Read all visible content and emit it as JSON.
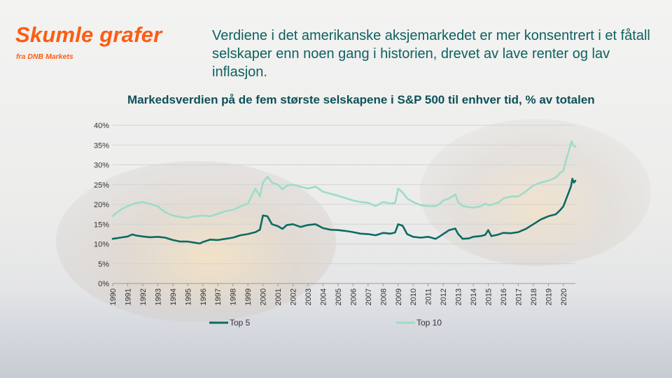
{
  "brand": {
    "title": "Skumle grafer",
    "subtitle": "fra DNB Markets",
    "color": "#ff5b12"
  },
  "headline": "Verdiene i det amerikanske aksjemarkedet er mer konsentrert i et fåtall selskaper enn noen gang i historien, drevet av lave renter og lav inflasjon.",
  "chart_data": {
    "type": "line",
    "title": "Markedsverdien på de fem største selskapene i S&P 500 til enhver tid, % av totalen",
    "xlabel": "",
    "ylabel": "",
    "xlim": [
      1990,
      2020.8
    ],
    "ylim": [
      0,
      40
    ],
    "y_ticks": [
      0,
      5,
      10,
      15,
      20,
      25,
      30,
      35,
      40
    ],
    "y_tick_labels": [
      "0%",
      "5%",
      "10%",
      "15%",
      "20%",
      "25%",
      "30%",
      "35%",
      "40%"
    ],
    "x_tick_labels": [
      "1990",
      "1991",
      "1992",
      "1993",
      "1994",
      "1995",
      "1996",
      "1997",
      "1998",
      "1999",
      "2000",
      "2001",
      "2002",
      "2003",
      "2004",
      "2005",
      "2006",
      "2007",
      "2008",
      "2009",
      "2010",
      "2011",
      "2012",
      "2013",
      "2014",
      "2015",
      "2016",
      "2017",
      "2018",
      "2019",
      "2020"
    ],
    "grid": "horizontal",
    "legend_position": "bottom",
    "series": [
      {
        "name": "Top 5",
        "color": "#0c6b63",
        "points": [
          [
            1990.0,
            11.3
          ],
          [
            1990.5,
            11.6
          ],
          [
            1991.0,
            11.9
          ],
          [
            1991.3,
            12.4
          ],
          [
            1991.6,
            12.1
          ],
          [
            1992.0,
            11.9
          ],
          [
            1992.5,
            11.7
          ],
          [
            1993.0,
            11.8
          ],
          [
            1993.5,
            11.6
          ],
          [
            1994.0,
            11.0
          ],
          [
            1994.5,
            10.6
          ],
          [
            1995.0,
            10.6
          ],
          [
            1995.5,
            10.3
          ],
          [
            1995.8,
            10.1
          ],
          [
            1996.0,
            10.5
          ],
          [
            1996.5,
            11.1
          ],
          [
            1997.0,
            11.0
          ],
          [
            1997.5,
            11.3
          ],
          [
            1998.0,
            11.6
          ],
          [
            1998.5,
            12.2
          ],
          [
            1999.0,
            12.5
          ],
          [
            1999.5,
            13.0
          ],
          [
            1999.8,
            13.6
          ],
          [
            2000.0,
            17.2
          ],
          [
            2000.3,
            17.0
          ],
          [
            2000.6,
            15.0
          ],
          [
            2001.0,
            14.5
          ],
          [
            2001.3,
            13.8
          ],
          [
            2001.6,
            14.8
          ],
          [
            2002.0,
            15.0
          ],
          [
            2002.5,
            14.3
          ],
          [
            2003.0,
            14.8
          ],
          [
            2003.5,
            15.0
          ],
          [
            2004.0,
            14.0
          ],
          [
            2004.5,
            13.6
          ],
          [
            2005.0,
            13.5
          ],
          [
            2005.5,
            13.3
          ],
          [
            2006.0,
            13.0
          ],
          [
            2006.5,
            12.6
          ],
          [
            2007.0,
            12.5
          ],
          [
            2007.5,
            12.2
          ],
          [
            2008.0,
            12.8
          ],
          [
            2008.5,
            12.6
          ],
          [
            2008.8,
            12.9
          ],
          [
            2009.0,
            15.0
          ],
          [
            2009.3,
            14.6
          ],
          [
            2009.6,
            12.5
          ],
          [
            2010.0,
            11.8
          ],
          [
            2010.5,
            11.6
          ],
          [
            2011.0,
            11.8
          ],
          [
            2011.5,
            11.3
          ],
          [
            2011.8,
            12.0
          ],
          [
            2012.0,
            12.5
          ],
          [
            2012.4,
            13.5
          ],
          [
            2012.8,
            13.9
          ],
          [
            2013.0,
            12.5
          ],
          [
            2013.3,
            11.3
          ],
          [
            2013.7,
            11.4
          ],
          [
            2014.0,
            11.8
          ],
          [
            2014.5,
            12.0
          ],
          [
            2014.8,
            12.3
          ],
          [
            2015.0,
            13.5
          ],
          [
            2015.2,
            12.0
          ],
          [
            2015.6,
            12.3
          ],
          [
            2016.0,
            12.8
          ],
          [
            2016.5,
            12.7
          ],
          [
            2017.0,
            13.0
          ],
          [
            2017.5,
            13.8
          ],
          [
            2018.0,
            15.0
          ],
          [
            2018.5,
            16.2
          ],
          [
            2019.0,
            17.0
          ],
          [
            2019.5,
            17.5
          ],
          [
            2019.8,
            18.6
          ],
          [
            2020.0,
            19.5
          ],
          [
            2020.3,
            22.5
          ],
          [
            2020.5,
            24.5
          ],
          [
            2020.6,
            26.5
          ],
          [
            2020.7,
            25.5
          ],
          [
            2020.8,
            26.0
          ]
        ]
      },
      {
        "name": "Top 10",
        "color": "#9ddcc8",
        "points": [
          [
            1990.0,
            17.0
          ],
          [
            1990.3,
            18.0
          ],
          [
            1990.6,
            18.8
          ],
          [
            1991.0,
            19.6
          ],
          [
            1991.5,
            20.3
          ],
          [
            1992.0,
            20.6
          ],
          [
            1992.5,
            20.1
          ],
          [
            1993.0,
            19.5
          ],
          [
            1993.5,
            18.0
          ],
          [
            1994.0,
            17.2
          ],
          [
            1994.5,
            16.8
          ],
          [
            1995.0,
            16.6
          ],
          [
            1995.5,
            17.0
          ],
          [
            1996.0,
            17.2
          ],
          [
            1996.5,
            17.0
          ],
          [
            1997.0,
            17.6
          ],
          [
            1997.5,
            18.3
          ],
          [
            1998.0,
            18.6
          ],
          [
            1998.5,
            19.5
          ],
          [
            1999.0,
            20.2
          ],
          [
            1999.3,
            22.5
          ],
          [
            1999.5,
            24.0
          ],
          [
            1999.8,
            22.0
          ],
          [
            2000.0,
            25.5
          ],
          [
            2000.3,
            27.0
          ],
          [
            2000.6,
            25.5
          ],
          [
            2001.0,
            25.0
          ],
          [
            2001.3,
            23.8
          ],
          [
            2001.6,
            24.8
          ],
          [
            2002.0,
            25.0
          ],
          [
            2002.5,
            24.5
          ],
          [
            2003.0,
            24.0
          ],
          [
            2003.5,
            24.5
          ],
          [
            2004.0,
            23.2
          ],
          [
            2004.5,
            22.7
          ],
          [
            2005.0,
            22.2
          ],
          [
            2005.5,
            21.6
          ],
          [
            2006.0,
            21.0
          ],
          [
            2006.5,
            20.6
          ],
          [
            2007.0,
            20.4
          ],
          [
            2007.5,
            19.6
          ],
          [
            2008.0,
            20.6
          ],
          [
            2008.5,
            20.2
          ],
          [
            2008.8,
            20.4
          ],
          [
            2009.0,
            24.0
          ],
          [
            2009.3,
            23.0
          ],
          [
            2009.6,
            21.5
          ],
          [
            2010.0,
            20.6
          ],
          [
            2010.5,
            19.8
          ],
          [
            2011.0,
            19.6
          ],
          [
            2011.5,
            19.6
          ],
          [
            2011.8,
            20.2
          ],
          [
            2012.0,
            21.0
          ],
          [
            2012.4,
            21.5
          ],
          [
            2012.8,
            22.5
          ],
          [
            2013.0,
            20.6
          ],
          [
            2013.3,
            19.6
          ],
          [
            2013.7,
            19.3
          ],
          [
            2014.0,
            19.2
          ],
          [
            2014.5,
            19.5
          ],
          [
            2014.8,
            20.2
          ],
          [
            2015.0,
            19.8
          ],
          [
            2015.3,
            20.0
          ],
          [
            2015.7,
            20.5
          ],
          [
            2016.0,
            21.5
          ],
          [
            2016.5,
            22.0
          ],
          [
            2017.0,
            22.0
          ],
          [
            2017.5,
            23.3
          ],
          [
            2018.0,
            24.8
          ],
          [
            2018.5,
            25.5
          ],
          [
            2019.0,
            26.0
          ],
          [
            2019.5,
            26.8
          ],
          [
            2019.8,
            28.0
          ],
          [
            2020.0,
            28.5
          ],
          [
            2020.2,
            31.5
          ],
          [
            2020.4,
            34.0
          ],
          [
            2020.55,
            36.0
          ],
          [
            2020.65,
            35.0
          ],
          [
            2020.8,
            34.6
          ]
        ]
      }
    ]
  }
}
